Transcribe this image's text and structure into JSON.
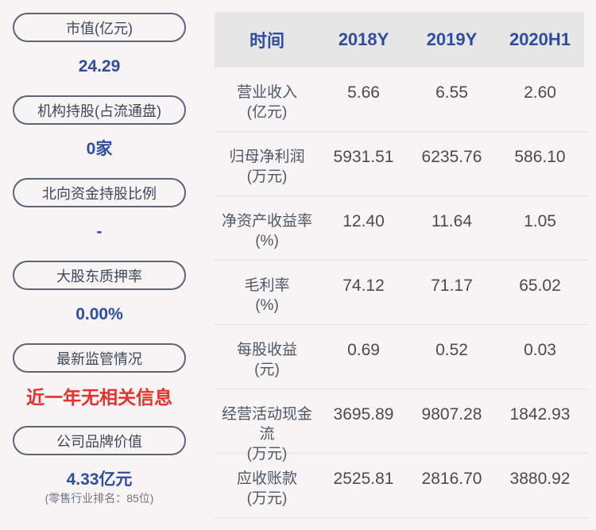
{
  "colors": {
    "background": "#f8f4f5",
    "accent_blue": "#2e4d9e",
    "alert_red": "#e8302d",
    "pill_border": "#5b6577",
    "pill_text": "#3d4859",
    "table_header_bg": "#e7e6e7",
    "cell_text": "#4b4b4b",
    "label_text": "#4e5866"
  },
  "sidebar": {
    "items": [
      {
        "label": "市值(亿元)",
        "value": "24.29",
        "value_style": "blue",
        "subtext": ""
      },
      {
        "label": "机构持股(占流通盘)",
        "value": "0家",
        "value_style": "blue",
        "subtext": ""
      },
      {
        "label": "北向资金持股比例",
        "value": "-",
        "value_style": "blue",
        "subtext": ""
      },
      {
        "label": "大股东质押率",
        "value": "0.00%",
        "value_style": "blue",
        "subtext": ""
      },
      {
        "label": "最新监管情况",
        "value": "近一年无相关信息",
        "value_style": "red",
        "subtext": ""
      },
      {
        "label": "公司品牌价值",
        "value": "4.33亿元",
        "value_style": "blue",
        "subtext": "(零售行业排名：85位)"
      }
    ]
  },
  "table": {
    "header": [
      "时间",
      "2018Y",
      "2019Y",
      "2020H1"
    ],
    "rows": [
      {
        "label": "营业收入",
        "unit": "(亿元)",
        "values": [
          "5.66",
          "6.55",
          "2.60"
        ]
      },
      {
        "label": "归母净利润",
        "unit": "(万元)",
        "values": [
          "5931.51",
          "6235.76",
          "586.10"
        ]
      },
      {
        "label": "净资产收益率",
        "unit": "(%)",
        "values": [
          "12.40",
          "11.64",
          "1.05"
        ]
      },
      {
        "label": "毛利率",
        "unit": "(%)",
        "values": [
          "74.12",
          "71.17",
          "65.02"
        ]
      },
      {
        "label": "每股收益",
        "unit": "(元)",
        "values": [
          "0.69",
          "0.52",
          "0.03"
        ]
      },
      {
        "label": "经营活动现金流",
        "unit": "(万元)",
        "values": [
          "3695.89",
          "9807.28",
          "1842.93"
        ]
      },
      {
        "label": "应收账款",
        "unit": "(万元)",
        "values": [
          "2525.81",
          "2816.70",
          "3880.92"
        ]
      }
    ]
  }
}
